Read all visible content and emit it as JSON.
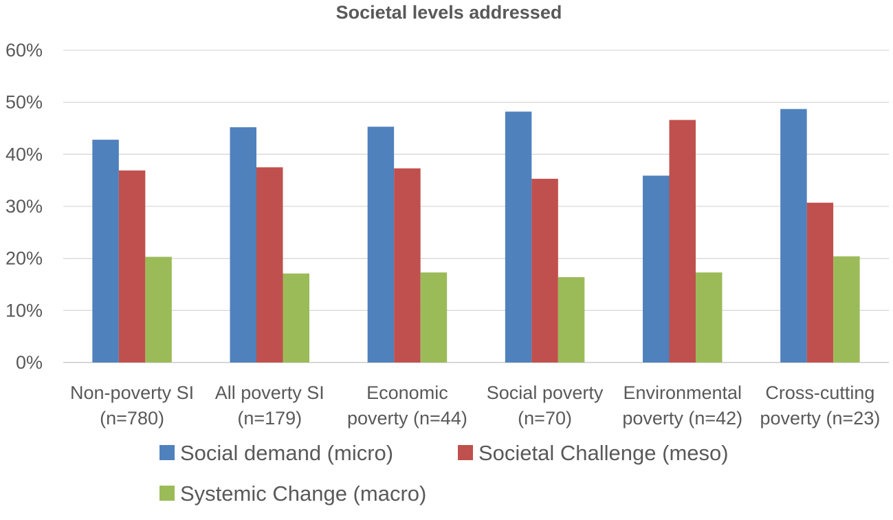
{
  "chart_data": {
    "type": "bar",
    "title": "Societal levels addressed",
    "categories": [
      [
        "Non-poverty SI",
        "(n=780)"
      ],
      [
        "All poverty SI",
        "(n=179)"
      ],
      [
        "Economic",
        "poverty (n=44)"
      ],
      [
        "Social poverty",
        "(n=70)"
      ],
      [
        "Environmental",
        "poverty (n=42)"
      ],
      [
        "Cross-cutting",
        "poverty (n=23)"
      ]
    ],
    "series": [
      {
        "name": "Social demand (micro)",
        "color": "#4f81bd",
        "values": [
          42.8,
          45.2,
          45.3,
          48.2,
          35.9,
          48.7
        ]
      },
      {
        "name": "Societal Challenge (meso)",
        "color": "#c0504d",
        "values": [
          36.9,
          37.5,
          37.3,
          35.3,
          46.6,
          30.7
        ]
      },
      {
        "name": "Systemic Change (macro)",
        "color": "#9bbb59",
        "values": [
          20.3,
          17.1,
          17.3,
          16.4,
          17.3,
          20.4
        ]
      }
    ],
    "ylim": [
      0,
      60
    ],
    "yticks": [
      0,
      10,
      20,
      30,
      40,
      50,
      60
    ],
    "ytick_labels": [
      "0%",
      "10%",
      "20%",
      "30%",
      "40%",
      "50%",
      "60%"
    ],
    "xlabel": "",
    "ylabel": "",
    "grid": true,
    "legend_position": "bottom"
  }
}
